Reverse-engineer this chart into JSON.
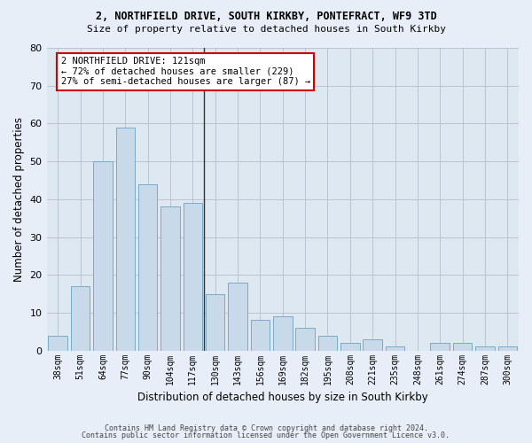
{
  "title1": "2, NORTHFIELD DRIVE, SOUTH KIRKBY, PONTEFRACT, WF9 3TD",
  "title2": "Size of property relative to detached houses in South Kirkby",
  "xlabel": "Distribution of detached houses by size in South Kirkby",
  "ylabel": "Number of detached properties",
  "categories": [
    "38sqm",
    "51sqm",
    "64sqm",
    "77sqm",
    "90sqm",
    "104sqm",
    "117sqm",
    "130sqm",
    "143sqm",
    "156sqm",
    "169sqm",
    "182sqm",
    "195sqm",
    "208sqm",
    "221sqm",
    "235sqm",
    "248sqm",
    "261sqm",
    "274sqm",
    "287sqm",
    "300sqm"
  ],
  "values": [
    4,
    17,
    50,
    59,
    44,
    38,
    39,
    15,
    18,
    8,
    9,
    6,
    4,
    2,
    3,
    1,
    0,
    2,
    2,
    1,
    1
  ],
  "bar_color": "#c8daea",
  "bar_edge_color": "#7aaac8",
  "highlight_bar_index": 6,
  "annotation_text": "2 NORTHFIELD DRIVE: 121sqm\n← 72% of detached houses are smaller (229)\n27% of semi-detached houses are larger (87) →",
  "annotation_box_color": "#ffffff",
  "annotation_box_edge_color": "#cc0000",
  "ylim": [
    0,
    80
  ],
  "yticks": [
    0,
    10,
    20,
    30,
    40,
    50,
    60,
    70,
    80
  ],
  "grid_color": "#bbbbcc",
  "background_color": "#dde8f0",
  "fig_background_color": "#e8eef8",
  "footer1": "Contains HM Land Registry data © Crown copyright and database right 2024.",
  "footer2": "Contains public sector information licensed under the Open Government Licence v3.0."
}
